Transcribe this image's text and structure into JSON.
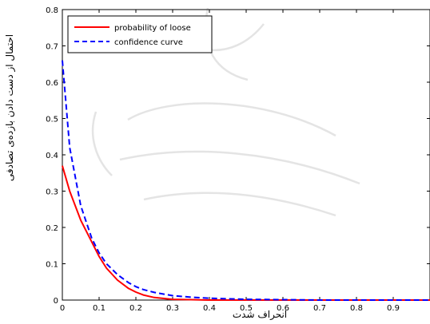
{
  "chart_data": {
    "type": "line",
    "xlabel": "انحراف شدت",
    "ylabel": "احتمال از دست دادن بازده‌ی تصادفی",
    "xlim": [
      0,
      1
    ],
    "ylim": [
      0,
      0.8
    ],
    "x_ticks": [
      "0",
      "0.1",
      "0.2",
      "0.3",
      "0.4",
      "0.5",
      "0.6",
      "0.7",
      "0.8",
      "0.9"
    ],
    "y_ticks": [
      "0",
      "0.1",
      "0.2",
      "0.3",
      "0.4",
      "0.5",
      "0.6",
      "0.7",
      "0.8"
    ],
    "grid": false,
    "legend_position": "top-left",
    "x": [
      0,
      0.02,
      0.05,
      0.08,
      0.1,
      0.12,
      0.15,
      0.18,
      0.2,
      0.22,
      0.25,
      0.3,
      0.35,
      0.4,
      0.5,
      0.6,
      0.7,
      0.8,
      0.9,
      1.0
    ],
    "series": [
      {
        "name": "probability of loose",
        "color": "#ff0000",
        "style": "solid",
        "values": [
          0.37,
          0.3,
          0.22,
          0.16,
          0.12,
          0.088,
          0.055,
          0.032,
          0.022,
          0.014,
          0.007,
          0.002,
          0.001,
          0.0,
          0.0,
          0.0,
          0.0,
          0.0,
          0.0,
          0.0
        ]
      },
      {
        "name": "confidence curve",
        "color": "#0000ff",
        "style": "dashed",
        "values": [
          0.66,
          0.42,
          0.26,
          0.17,
          0.13,
          0.1,
          0.07,
          0.048,
          0.037,
          0.029,
          0.021,
          0.012,
          0.008,
          0.005,
          0.002,
          0.001,
          0.0,
          0.0,
          0.0,
          0.0
        ]
      }
    ]
  }
}
